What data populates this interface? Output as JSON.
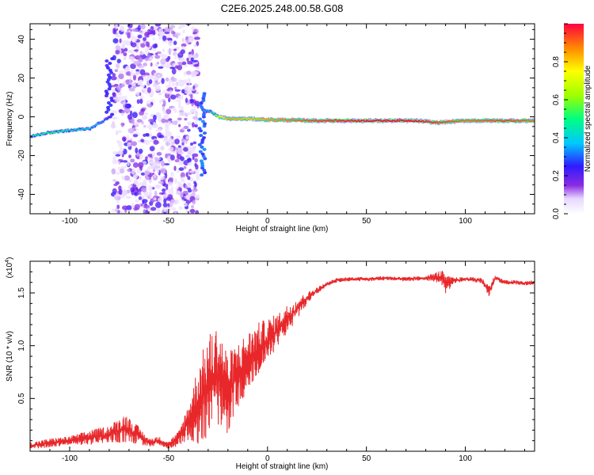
{
  "title": "C2E6.2025.248.00.58.G08",
  "chart_data": [
    {
      "type": "heatmap",
      "xlabel": "Height of straight line (km)",
      "ylabel": "Frequency (Hz)",
      "xlim": [
        -120,
        135
      ],
      "ylim": [
        -50,
        48
      ],
      "xticks": [
        -100,
        -50,
        0,
        50,
        100
      ],
      "xtick_labels": [
        "-100",
        "-50",
        "0",
        "50",
        "100"
      ],
      "yticks": [
        40,
        20,
        0,
        -20,
        -40
      ],
      "ytick_labels": [
        "40",
        "20",
        "0",
        "-20",
        "-40"
      ],
      "colorbar": {
        "label": "Normalized spectral amplitude",
        "range": [
          0,
          1
        ],
        "ticks": [
          0.0,
          0.2,
          0.4,
          0.6,
          0.8
        ],
        "tick_labels": [
          "0.0",
          "0.2",
          "0.4",
          "0.6",
          "0.8"
        ]
      },
      "features": {
        "trace": [
          {
            "x": -120,
            "freq": -10,
            "amp": 0.45
          },
          {
            "x": -110,
            "freq": -8,
            "amp": 0.5
          },
          {
            "x": -100,
            "freq": -7,
            "amp": 0.45
          },
          {
            "x": -90,
            "freq": -6,
            "amp": 0.4
          },
          {
            "x": -85,
            "freq": -3,
            "amp": 0.35
          },
          {
            "x": -80,
            "freq": 0,
            "amp": 0.25
          },
          {
            "x": -30,
            "freq": 3,
            "amp": 0.35
          },
          {
            "x": -25,
            "freq": 0,
            "amp": 0.7
          },
          {
            "x": -20,
            "freq": -1,
            "amp": 0.85
          },
          {
            "x": -10,
            "freq": -1,
            "amp": 0.8
          },
          {
            "x": 0,
            "freq": -1.5,
            "amp": 0.85
          },
          {
            "x": 25,
            "freq": -2,
            "amp": 0.95
          },
          {
            "x": 50,
            "freq": -2,
            "amp": 1.0
          },
          {
            "x": 75,
            "freq": -2,
            "amp": 1.0
          },
          {
            "x": 85,
            "freq": -3,
            "amp": 0.95
          },
          {
            "x": 100,
            "freq": -2,
            "amp": 0.9
          },
          {
            "x": 120,
            "freq": -2,
            "amp": 0.95
          },
          {
            "x": 135,
            "freq": -2,
            "amp": 0.9
          }
        ],
        "noise_region": {
          "x": [
            -78,
            -35
          ],
          "freq": [
            -50,
            48
          ],
          "amp": [
            0.05,
            0.25
          ]
        },
        "left_column": {
          "x": -80,
          "freq": [
            0,
            30
          ],
          "amp": 0.2
        },
        "right_column": {
          "x": -33,
          "freq": [
            -30,
            12
          ],
          "amp": 0.25
        }
      }
    },
    {
      "type": "line",
      "xlabel": "Height of straight line (km)",
      "ylabel": "SNR (10 * v/v)",
      "scale_label": "(x10",
      "scale_exp": "4",
      "xlim": [
        -120,
        135
      ],
      "ylim": [
        0,
        1.8
      ],
      "xticks": [
        -100,
        -50,
        0,
        50,
        100
      ],
      "xtick_labels": [
        "-100",
        "-50",
        "0",
        "50",
        "100"
      ],
      "yticks": [
        1.5,
        1.0,
        0.5
      ],
      "ytick_labels": [
        "1.5",
        "1.0",
        "0.5"
      ],
      "color": "#e8272a",
      "series": [
        {
          "x": [
            -120,
            -110,
            -100,
            -90,
            -80,
            -72,
            -65,
            -60,
            -55,
            -50,
            -45,
            -40,
            -35,
            -30,
            -25,
            -20,
            -15,
            -10,
            -5,
            0,
            5,
            10,
            15,
            20,
            25,
            30,
            35,
            40,
            50,
            60,
            70,
            80,
            88,
            90,
            95,
            100,
            108,
            112,
            115,
            120,
            125,
            130,
            135
          ],
          "y": [
            0.05,
            0.08,
            0.1,
            0.13,
            0.16,
            0.22,
            0.15,
            0.08,
            0.1,
            0.06,
            0.12,
            0.28,
            0.45,
            0.62,
            0.72,
            0.55,
            0.72,
            0.85,
            0.95,
            1.05,
            1.15,
            1.25,
            1.35,
            1.45,
            1.52,
            1.58,
            1.62,
            1.63,
            1.63,
            1.64,
            1.63,
            1.64,
            1.65,
            1.58,
            1.62,
            1.63,
            1.62,
            1.52,
            1.64,
            1.6,
            1.6,
            1.59,
            1.6
          ],
          "noise_amp": [
            0.05,
            0.06,
            0.06,
            0.1,
            0.12,
            0.2,
            0.12,
            0.06,
            0.06,
            0.05,
            0.1,
            0.25,
            0.55,
            0.7,
            0.7,
            0.55,
            0.45,
            0.4,
            0.38,
            0.3,
            0.22,
            0.2,
            0.15,
            0.08,
            0.05,
            0.03,
            0.03,
            0.03,
            0.03,
            0.03,
            0.03,
            0.03,
            0.1,
            0.12,
            0.04,
            0.03,
            0.04,
            0.08,
            0.04,
            0.03,
            0.03,
            0.03,
            0.03
          ]
        }
      ]
    }
  ]
}
